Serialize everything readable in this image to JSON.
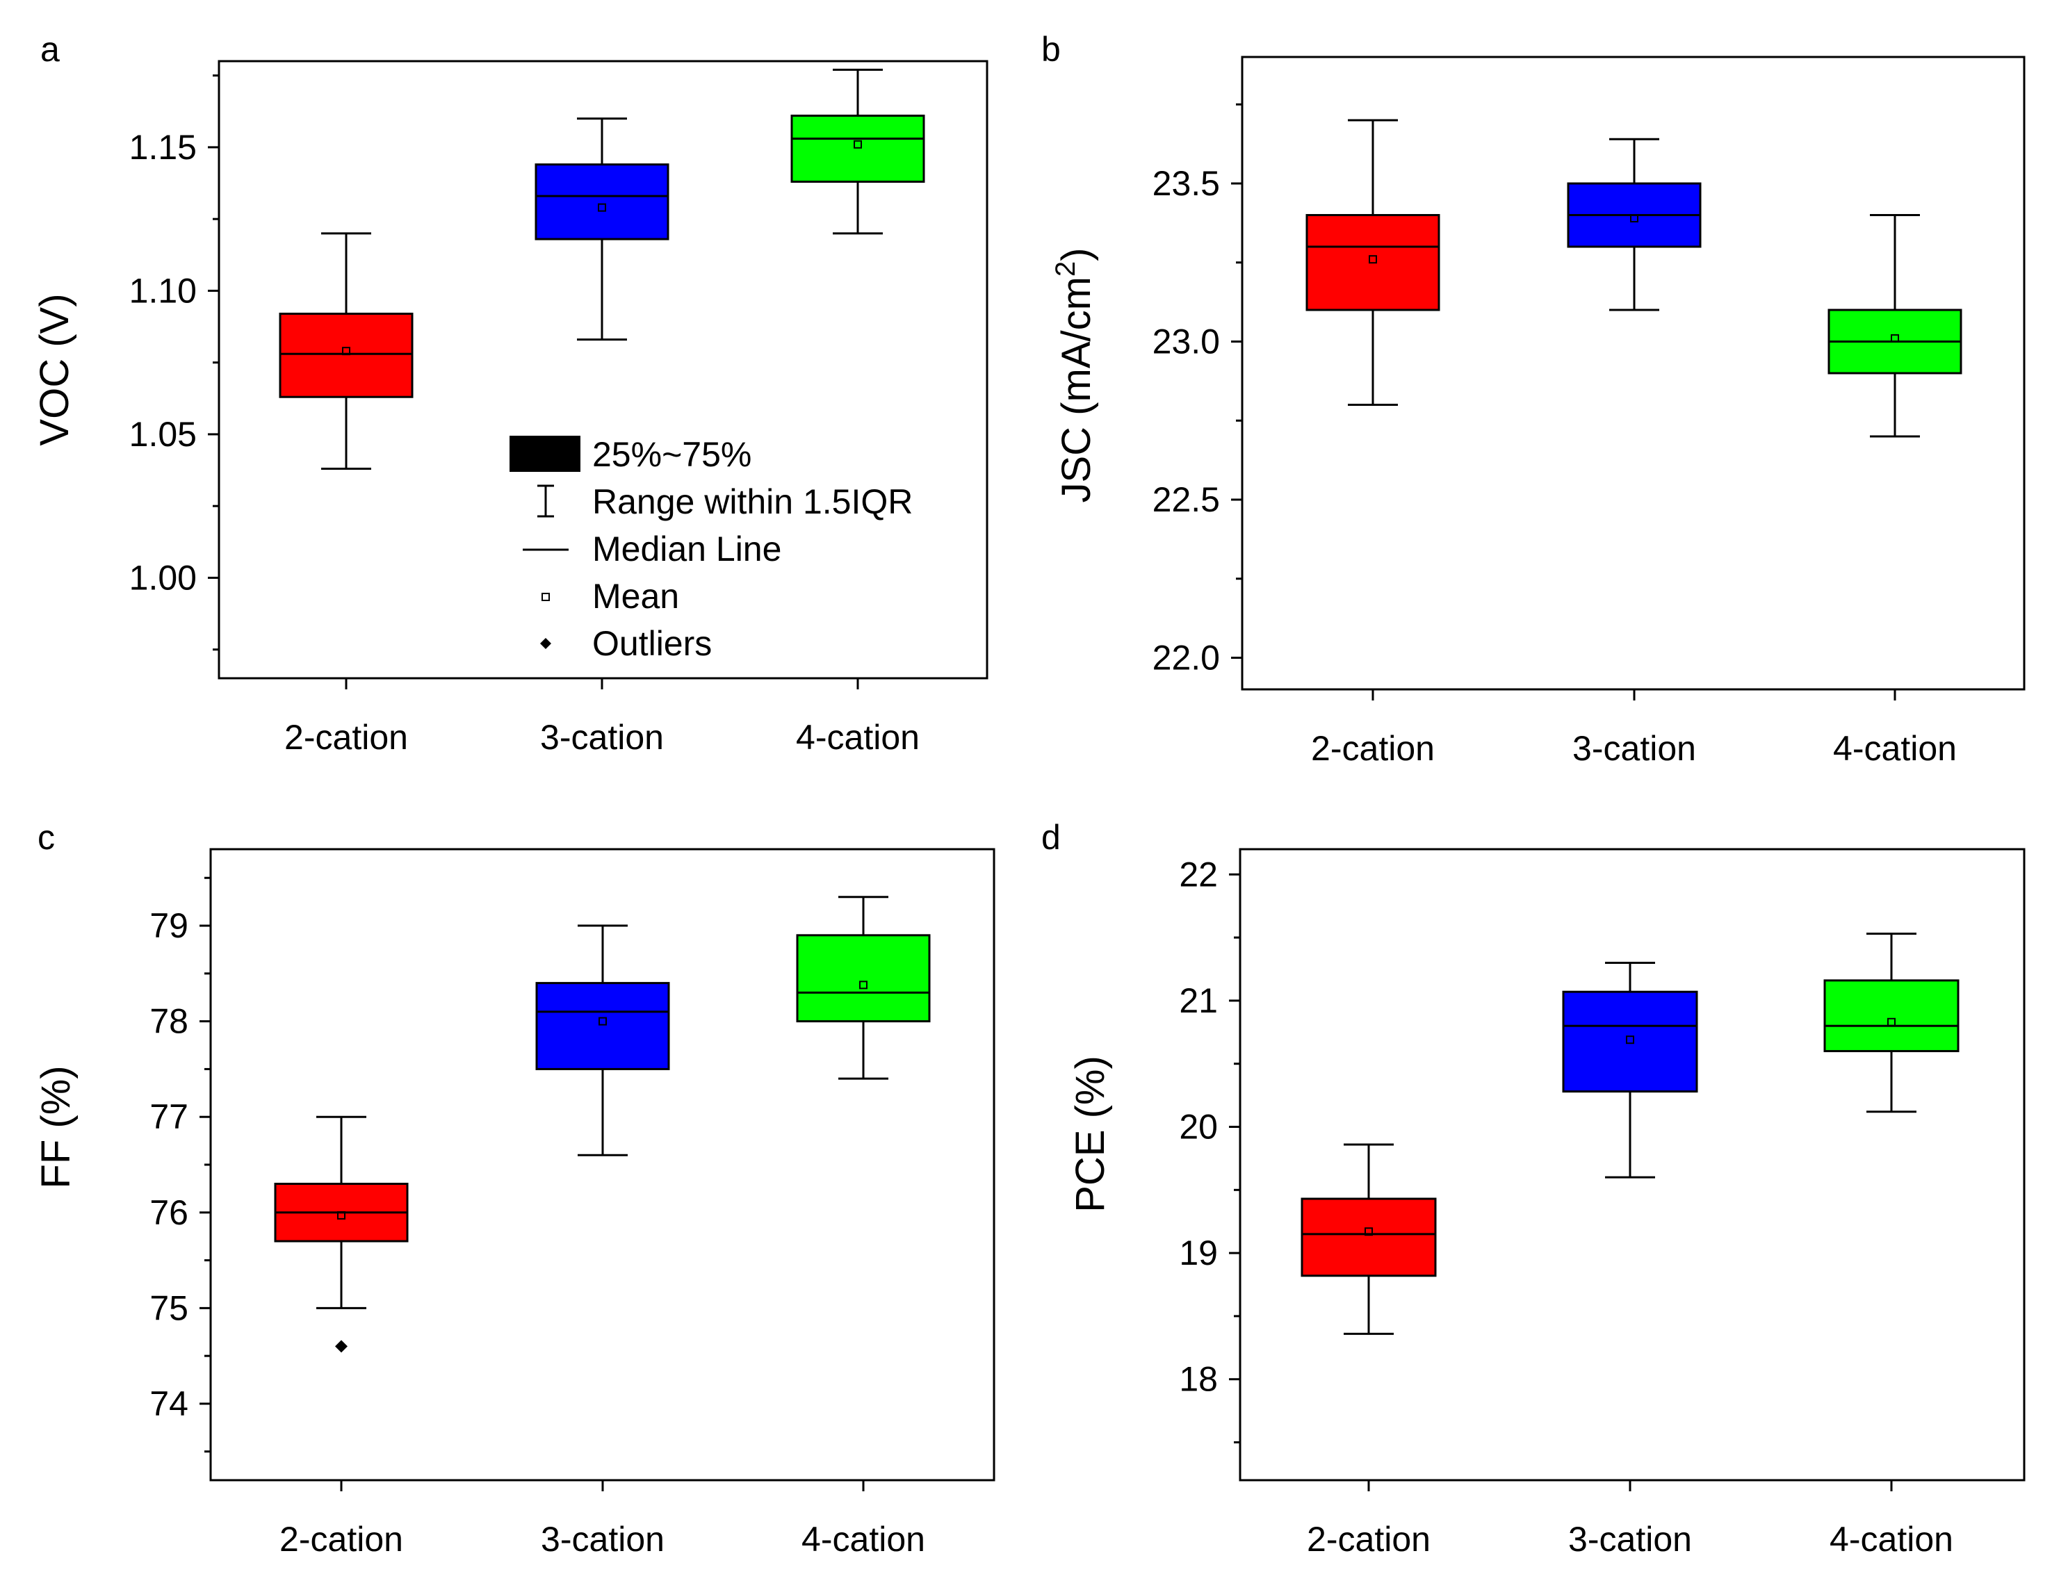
{
  "colors": {
    "2-cation": "#ff0000",
    "3-cation": "#0000ff",
    "4-cation": "#00ff00",
    "outline": "#000000"
  },
  "legend": {
    "items": [
      {
        "symbol": "box",
        "label": "25%~75%"
      },
      {
        "symbol": "whisker",
        "label": "Range within 1.5IQR"
      },
      {
        "symbol": "line",
        "label": "Median Line"
      },
      {
        "symbol": "square",
        "label": "Mean"
      },
      {
        "symbol": "diamond",
        "label": "Outliers"
      }
    ]
  },
  "chart_data": [
    {
      "panel": "a",
      "type": "box",
      "ylabel": "VOC (V)",
      "ylim": [
        0.965,
        1.18
      ],
      "yticks": [
        1.0,
        1.05,
        1.1,
        1.15
      ],
      "ytick_labels": [
        "1.00",
        "1.05",
        "1.10",
        "1.15"
      ],
      "categories": [
        "2-cation",
        "3-cation",
        "4-cation"
      ],
      "boxes": [
        {
          "category": "2-cation",
          "whisker_low": 1.038,
          "q1": 1.063,
          "median": 1.078,
          "q3": 1.092,
          "whisker_high": 1.12,
          "mean": 1.079,
          "outliers": []
        },
        {
          "category": "3-cation",
          "whisker_low": 1.083,
          "q1": 1.118,
          "median": 1.133,
          "q3": 1.144,
          "whisker_high": 1.16,
          "mean": 1.129,
          "outliers": []
        },
        {
          "category": "4-cation",
          "whisker_low": 1.12,
          "q1": 1.138,
          "median": 1.153,
          "q3": 1.161,
          "whisker_high": 1.177,
          "mean": 1.151,
          "outliers": []
        }
      ]
    },
    {
      "panel": "b",
      "type": "box",
      "ylabel": "JSC (mA/cm",
      "ylabel_sup": "2",
      "ylabel_end": ")",
      "ylim": [
        21.9,
        23.9
      ],
      "yticks": [
        22.0,
        22.5,
        23.0,
        23.5
      ],
      "ytick_labels": [
        "22.0",
        "22.5",
        "23.0",
        "23.5"
      ],
      "categories": [
        "2-cation",
        "3-cation",
        "4-cation"
      ],
      "boxes": [
        {
          "category": "2-cation",
          "whisker_low": 22.8,
          "q1": 23.1,
          "median": 23.3,
          "q3": 23.4,
          "whisker_high": 23.7,
          "mean": 23.26,
          "outliers": []
        },
        {
          "category": "3-cation",
          "whisker_low": 23.1,
          "q1": 23.3,
          "median": 23.4,
          "q3": 23.5,
          "whisker_high": 23.64,
          "mean": 23.39,
          "outliers": []
        },
        {
          "category": "4-cation",
          "whisker_low": 22.7,
          "q1": 22.9,
          "median": 23.0,
          "q3": 23.1,
          "whisker_high": 23.4,
          "mean": 23.01,
          "outliers": []
        }
      ]
    },
    {
      "panel": "c",
      "type": "box",
      "ylabel": "FF (%)",
      "ylim": [
        73.2,
        79.8
      ],
      "yticks": [
        74,
        75,
        76,
        77,
        78,
        79
      ],
      "ytick_labels": [
        "74",
        "75",
        "76",
        "77",
        "78",
        "79"
      ],
      "categories": [
        "2-cation",
        "3-cation",
        "4-cation"
      ],
      "boxes": [
        {
          "category": "2-cation",
          "whisker_low": 75.0,
          "q1": 75.7,
          "median": 76.0,
          "q3": 76.3,
          "whisker_high": 77.0,
          "mean": 75.97,
          "outliers": [
            74.6
          ]
        },
        {
          "category": "3-cation",
          "whisker_low": 76.6,
          "q1": 77.5,
          "median": 78.1,
          "q3": 78.4,
          "whisker_high": 79.0,
          "mean": 78.0,
          "outliers": []
        },
        {
          "category": "4-cation",
          "whisker_low": 77.4,
          "q1": 78.0,
          "median": 78.3,
          "q3": 78.9,
          "whisker_high": 79.3,
          "mean": 78.38,
          "outliers": []
        }
      ]
    },
    {
      "panel": "d",
      "type": "box",
      "ylabel": "PCE (%)",
      "ylim": [
        17.2,
        22.2
      ],
      "yticks": [
        18,
        19,
        20,
        21,
        22
      ],
      "ytick_labels": [
        "18",
        "19",
        "20",
        "21",
        "22"
      ],
      "categories": [
        "2-cation",
        "3-cation",
        "4-cation"
      ],
      "boxes": [
        {
          "category": "2-cation",
          "whisker_low": 18.36,
          "q1": 18.82,
          "median": 19.15,
          "q3": 19.43,
          "whisker_high": 19.86,
          "mean": 19.17,
          "outliers": []
        },
        {
          "category": "3-cation",
          "whisker_low": 19.6,
          "q1": 20.28,
          "median": 20.8,
          "q3": 21.07,
          "whisker_high": 21.3,
          "mean": 20.69,
          "outliers": []
        },
        {
          "category": "4-cation",
          "whisker_low": 20.12,
          "q1": 20.6,
          "median": 20.8,
          "q3": 21.16,
          "whisker_high": 21.53,
          "mean": 20.83,
          "outliers": []
        }
      ]
    }
  ]
}
